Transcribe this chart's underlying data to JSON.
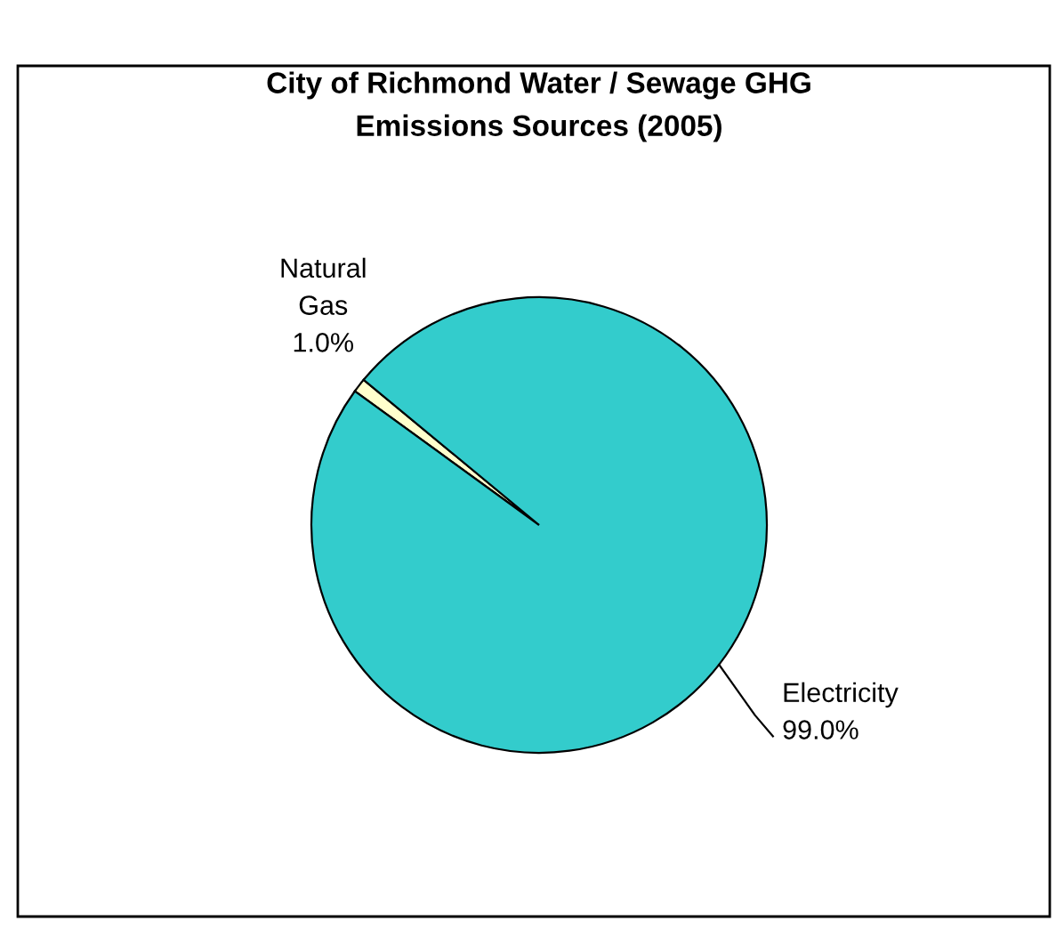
{
  "chart_data": {
    "type": "pie",
    "title": "City of Richmond Water / Sewage GHG\nEmissions Sources (2005)",
    "categories": [
      "Natural Gas",
      "Electricity"
    ],
    "values": [
      1.0,
      99.0
    ],
    "colors": [
      "#ffffcc",
      "#33cccc"
    ],
    "value_labels": [
      "1.0%",
      "99.0%"
    ],
    "legend": false
  }
}
